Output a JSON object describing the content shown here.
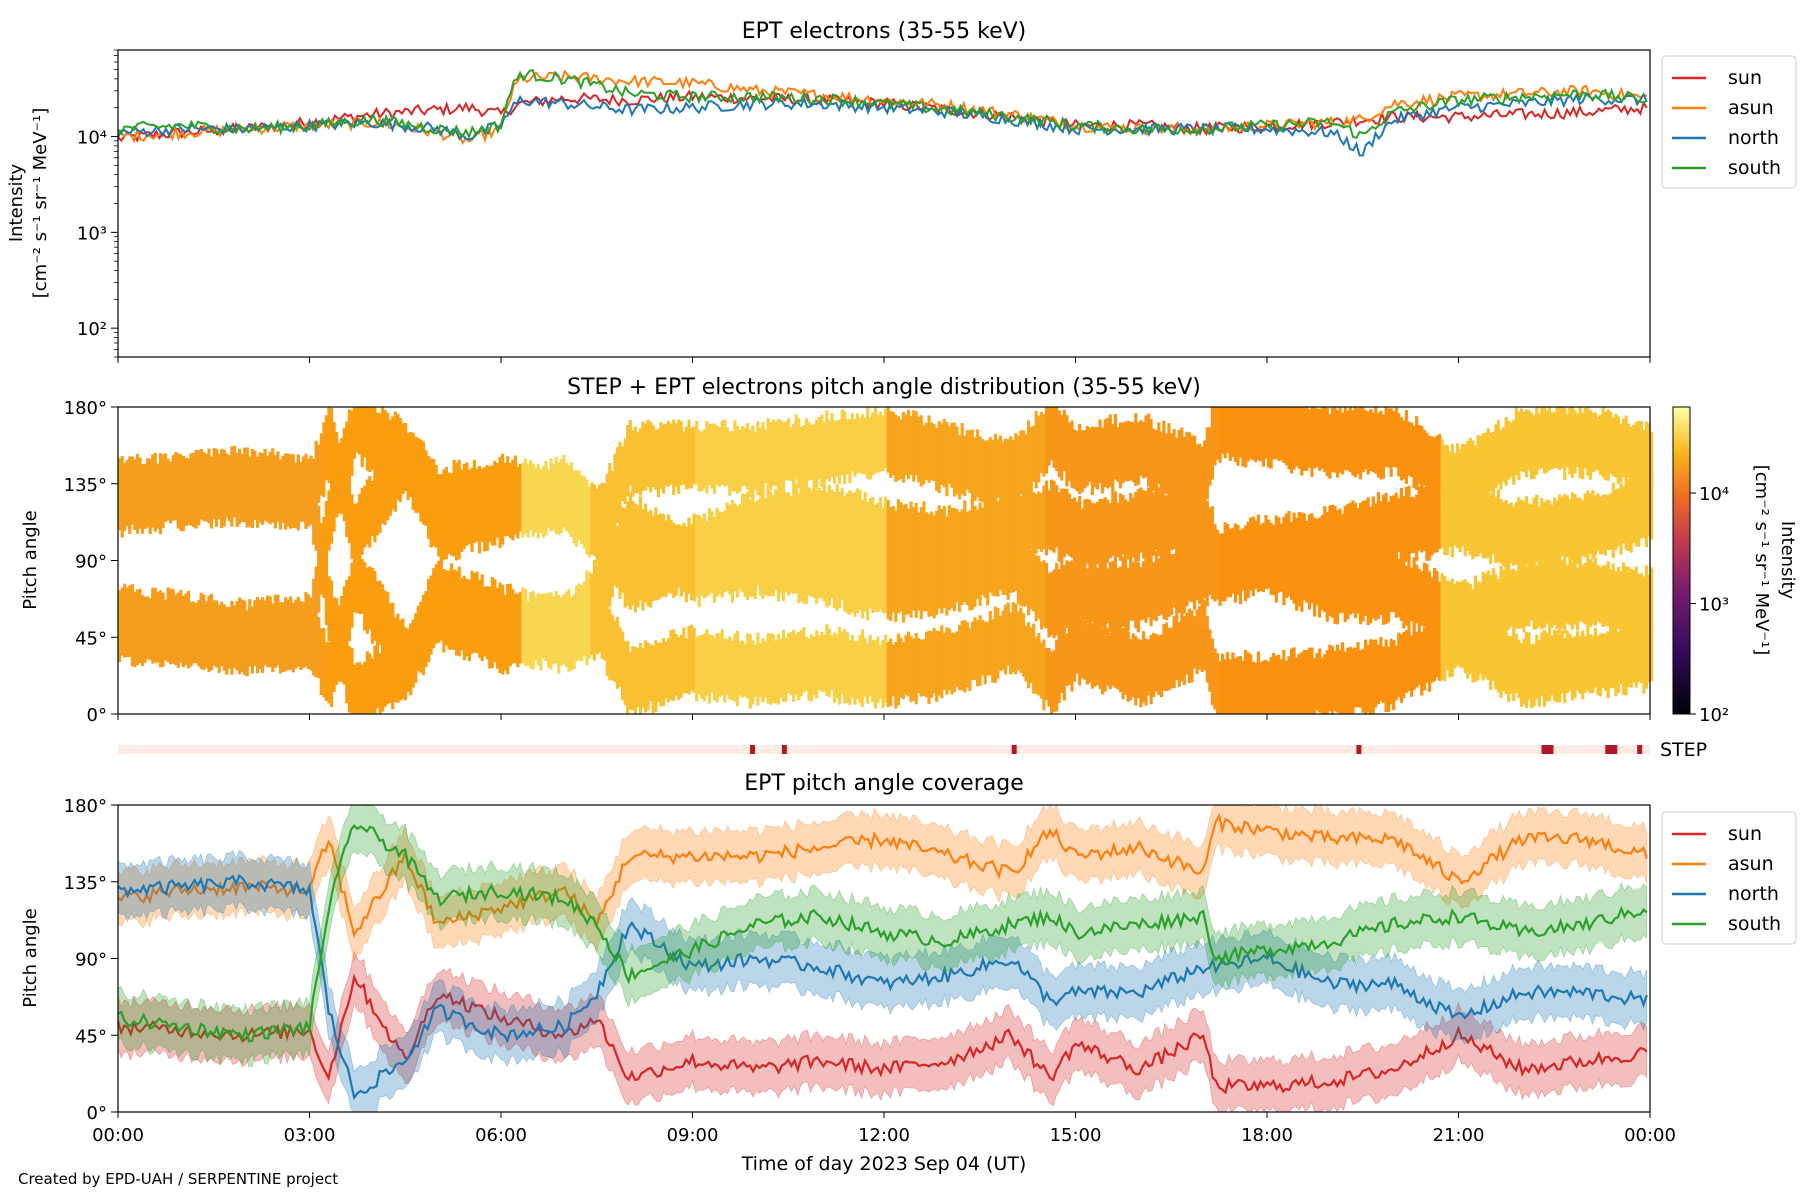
{
  "figure": {
    "footer": "Created by EPD-UAH / SERPENTINE project",
    "xlabel": "Time of day 2023 Sep 04 (UT)",
    "xticks": [
      "00:00",
      "03:00",
      "06:00",
      "09:00",
      "12:00",
      "15:00",
      "18:00",
      "21:00",
      "00:00"
    ]
  },
  "chart_data": [
    {
      "type": "line",
      "title": "EPT electrons (35-55 keV)",
      "ylabel": "Intensity [cm⁻² s⁻¹ sr⁻¹ MeV⁻¹]",
      "yscale": "log",
      "ylim": [
        50,
        80000
      ],
      "yticks": [
        "10²",
        "10³",
        "10⁴"
      ],
      "x_hours": [
        0,
        1,
        2,
        3,
        4,
        5,
        5.5,
        6,
        6.3,
        7,
        8,
        9,
        10,
        11,
        12,
        13,
        14,
        15,
        16,
        17,
        18,
        19,
        19.5,
        20,
        21,
        22,
        23,
        24
      ],
      "legend": "upper right, outside",
      "series": [
        {
          "name": "sun",
          "color": "#d62728",
          "values": [
            9500,
            11000,
            12000,
            14000,
            17000,
            19000,
            20000,
            17000,
            22000,
            25000,
            24000,
            26000,
            25000,
            24000,
            22000,
            19000,
            16000,
            13000,
            13000,
            12000,
            13000,
            14000,
            15000,
            16000,
            16000,
            17000,
            18000,
            20000
          ]
        },
        {
          "name": "asun",
          "color": "#ff7f0e",
          "values": [
            10000,
            11000,
            12000,
            13000,
            14000,
            11000,
            9000,
            12000,
            40000,
            42000,
            38000,
            36000,
            30000,
            27000,
            24000,
            21000,
            17000,
            13000,
            12000,
            12000,
            13000,
            14000,
            15000,
            22000,
            26000,
            28000,
            30000,
            25000
          ]
        },
        {
          "name": "north",
          "color": "#1f77b4",
          "values": [
            11000,
            12000,
            12000,
            13000,
            14000,
            12000,
            10000,
            13000,
            24000,
            22000,
            19000,
            20000,
            22000,
            22000,
            20000,
            18000,
            15000,
            12000,
            12000,
            12000,
            12000,
            11000,
            6500,
            15000,
            20000,
            22000,
            25000,
            24000
          ]
        },
        {
          "name": "south",
          "color": "#2ca02c",
          "values": [
            12000,
            13000,
            12000,
            13000,
            15000,
            12000,
            11000,
            13000,
            45000,
            40000,
            28000,
            26000,
            26000,
            25000,
            22000,
            19000,
            16000,
            13000,
            12000,
            12000,
            13000,
            14000,
            10000,
            18000,
            24000,
            26000,
            28000,
            24000
          ]
        }
      ]
    },
    {
      "type": "heatmap",
      "title": "STEP + EPT electrons pitch angle distribution (35-55 keV)",
      "ylabel": "Pitch angle",
      "yticks": [
        "0°",
        "45°",
        "90°",
        "135°",
        "180°"
      ],
      "ylim": [
        0,
        180
      ],
      "colorbar": {
        "label": "Intensity [cm⁻² s⁻¹ sr⁻¹ MeV⁻¹]",
        "scale": "log",
        "range": [
          100,
          60000
        ],
        "ticks": [
          "10²",
          "10³",
          "10⁴"
        ],
        "colormap": "inferno"
      },
      "segments_hours": [
        {
          "start": 0,
          "end": 3.2,
          "color": "#f59d1c"
        },
        {
          "start": 3.2,
          "end": 6.3,
          "color": "#fa9e10"
        },
        {
          "start": 6.3,
          "end": 7.4,
          "color": "#f8d650"
        },
        {
          "start": 7.4,
          "end": 9,
          "color": "#f9c032"
        },
        {
          "start": 9,
          "end": 12.0,
          "color": "#f8cf45"
        },
        {
          "start": 12.0,
          "end": 14.5,
          "color": "#f7a51c"
        },
        {
          "start": 14.5,
          "end": 17.2,
          "color": "#f8961a"
        },
        {
          "start": 17.2,
          "end": 20.7,
          "color": "#fa920f"
        },
        {
          "start": 20.7,
          "end": 24,
          "color": "#f9c533"
        }
      ],
      "step_label": "STEP",
      "step_marks_hours": [
        9.9,
        10.4,
        14.0,
        19.4,
        22.3,
        23.3,
        23.8
      ]
    },
    {
      "type": "line",
      "title": "EPT pitch angle coverage",
      "ylabel": "Pitch angle",
      "yticks": [
        "0°",
        "45°",
        "90°",
        "135°",
        "180°"
      ],
      "ylim": [
        0,
        180
      ],
      "x_hours": [
        0,
        1,
        2,
        3,
        3.3,
        3.7,
        4.5,
        5,
        6,
        7,
        7.5,
        8,
        9,
        10,
        11,
        12,
        13,
        14,
        14.6,
        15,
        16,
        17,
        17.2,
        18,
        19,
        20,
        21,
        22,
        23,
        24
      ],
      "legend": "upper right, outside",
      "series": [
        {
          "name": "sun",
          "color": "#d62728",
          "values": [
            50,
            48,
            45,
            48,
            20,
            80,
            30,
            70,
            55,
            45,
            55,
            20,
            30,
            25,
            30,
            25,
            30,
            45,
            20,
            40,
            25,
            45,
            15,
            15,
            18,
            25,
            45,
            25,
            30,
            35
          ]
        },
        {
          "name": "asun",
          "color": "#ff7f0e",
          "values": [
            125,
            130,
            132,
            130,
            160,
            105,
            150,
            110,
            120,
            130,
            110,
            150,
            150,
            150,
            155,
            160,
            150,
            140,
            165,
            150,
            155,
            140,
            170,
            165,
            160,
            160,
            135,
            160,
            160,
            150
          ]
        },
        {
          "name": "north",
          "color": "#1f77b4",
          "values": [
            130,
            132,
            135,
            130,
            60,
            10,
            30,
            60,
            45,
            50,
            70,
            110,
            85,
            90,
            85,
            75,
            80,
            90,
            65,
            70,
            70,
            85,
            85,
            90,
            75,
            75,
            55,
            70,
            70,
            65
          ]
        },
        {
          "name": "south",
          "color": "#2ca02c",
          "values": [
            55,
            50,
            45,
            50,
            120,
            170,
            150,
            125,
            130,
            125,
            110,
            80,
            95,
            110,
            115,
            105,
            100,
            110,
            115,
            105,
            110,
            115,
            90,
            95,
            100,
            110,
            115,
            105,
            110,
            120
          ]
        }
      ],
      "band_halfwidth_deg": 15
    }
  ]
}
